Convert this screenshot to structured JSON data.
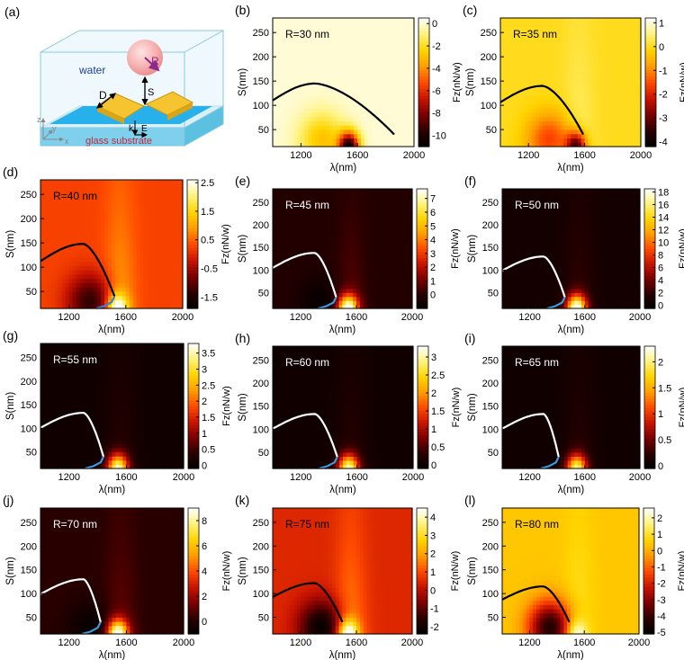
{
  "figure": {
    "x_axis": {
      "label": "λ(nm)",
      "range": [
        1000,
        2000
      ],
      "ticks": [
        1200,
        1600,
        2000
      ]
    },
    "y_axis": {
      "label": "S(nm)",
      "range": [
        15,
        280
      ],
      "ticks": [
        50,
        100,
        150,
        200,
        250
      ]
    },
    "colorbar_label": "Fz(nN/w)",
    "colormap": [
      "#000000",
      "#2a0000",
      "#7a0000",
      "#c81400",
      "#ff4a00",
      "#ff9c00",
      "#ffd400",
      "#fff27a",
      "#ffffff"
    ]
  },
  "schematic": {
    "panel": "(a)",
    "labels": {
      "water": "water",
      "substrate": "glass substrate",
      "radius": "R",
      "diagonal": "D",
      "gap": "S",
      "k": "k",
      "e": "E",
      "z": "z",
      "y": "y",
      "x": "x"
    }
  },
  "chart_data": [
    {
      "panel": "(b)",
      "type": "heatmap",
      "annotation": "R=30 nm",
      "clim": [
        -11,
        0.5
      ],
      "cbar_ticks": [
        0,
        -2,
        -4,
        -6,
        -8,
        -10
      ],
      "contour_colors": [
        "#000000"
      ]
    },
    {
      "panel": "(c)",
      "type": "heatmap",
      "annotation": "R=35 nm",
      "clim": [
        -4.2,
        1.2
      ],
      "cbar_ticks": [
        1,
        0,
        -1,
        -2,
        -3,
        -4
      ],
      "contour_colors": [
        "#000000"
      ]
    },
    {
      "panel": "(d)",
      "type": "heatmap",
      "annotation": "R=40 nm",
      "clim": [
        -1.9,
        2.6
      ],
      "cbar_ticks": [
        2.5,
        1.5,
        0.5,
        -0.5,
        -1.5
      ],
      "contour_colors": [
        "#000000",
        "#3a7fd0"
      ]
    },
    {
      "panel": "(e)",
      "type": "heatmap",
      "annotation": "R=45 nm",
      "clim": [
        -1.0,
        7.7
      ],
      "cbar_ticks": [
        7,
        6,
        5,
        4,
        3,
        2,
        1,
        0
      ],
      "contour_colors": [
        "#ffffff",
        "#3a9be0"
      ]
    },
    {
      "panel": "(f)",
      "type": "heatmap",
      "annotation": "R=50 nm",
      "clim": [
        -0.5,
        18.5
      ],
      "cbar_ticks": [
        18,
        16,
        14,
        12,
        10,
        8,
        6,
        4,
        2,
        0
      ],
      "contour_colors": [
        "#ffffff",
        "#3a9be0"
      ]
    },
    {
      "panel": "(g)",
      "type": "heatmap",
      "annotation": "R=55 nm",
      "clim": [
        -0.1,
        3.8
      ],
      "cbar_ticks": [
        3.5,
        3,
        2.5,
        2,
        1.5,
        1,
        0.5,
        0
      ],
      "contour_colors": [
        "#ffffff",
        "#3a9be0"
      ]
    },
    {
      "panel": "(h)",
      "type": "heatmap",
      "annotation": "R=60 nm",
      "clim": [
        -0.1,
        3.3
      ],
      "cbar_ticks": [
        3,
        2.5,
        2,
        1.5,
        1,
        0.5,
        0
      ],
      "contour_colors": [
        "#ffffff",
        "#3a9be0"
      ]
    },
    {
      "panel": "(i)",
      "type": "heatmap",
      "annotation": "R=65 nm",
      "clim": [
        -0.05,
        2.3
      ],
      "cbar_ticks": [
        2,
        1.5,
        1,
        0.5,
        0
      ],
      "contour_colors": [
        "#ffffff",
        "#3a9be0"
      ]
    },
    {
      "panel": "(j)",
      "type": "heatmap",
      "annotation": "R=70 nm",
      "clim": [
        -1.0,
        9.0
      ],
      "cbar_ticks": [
        8,
        6,
        4,
        2,
        0
      ],
      "contour_colors": [
        "#ffffff",
        "#3a9be0"
      ]
    },
    {
      "panel": "(k)",
      "type": "heatmap",
      "annotation": "R=75 nm",
      "clim": [
        -2.4,
        4.5
      ],
      "cbar_ticks": [
        4,
        3,
        2,
        1,
        0,
        -1,
        -2
      ],
      "contour_colors": [
        "#000000"
      ]
    },
    {
      "panel": "(l)",
      "type": "heatmap",
      "annotation": "R=80 nm",
      "clim": [
        -5.1,
        2.6
      ],
      "cbar_ticks": [
        2,
        1,
        0,
        -1,
        -2,
        -3,
        -4,
        -5
      ],
      "contour_colors": [
        "#000000"
      ]
    }
  ]
}
